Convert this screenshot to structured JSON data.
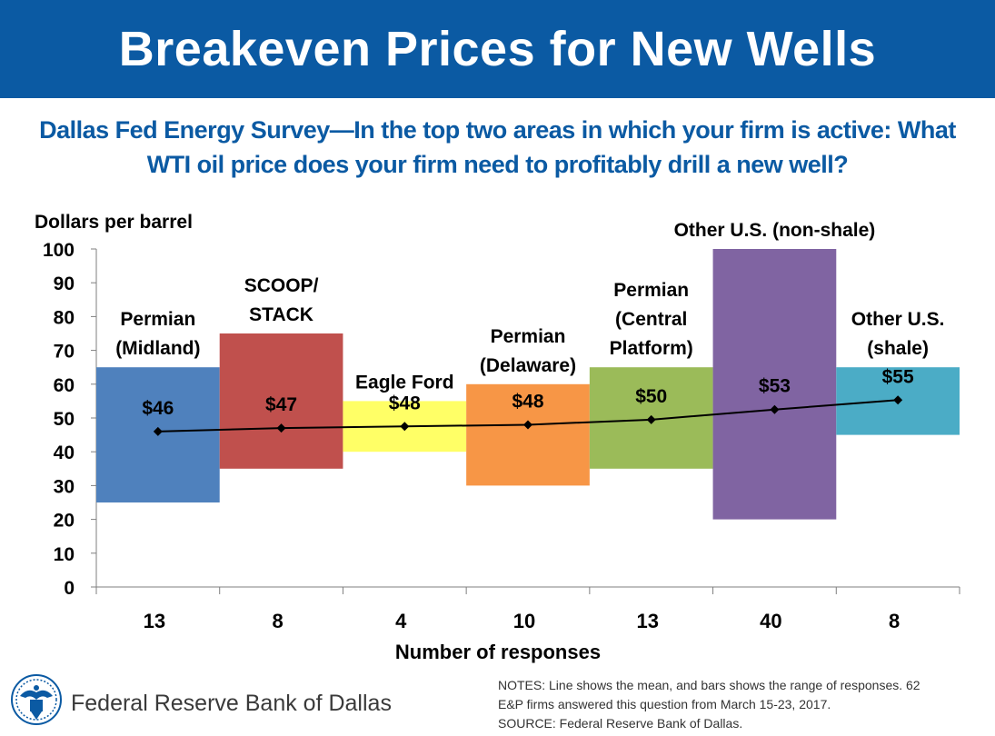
{
  "title": "Breakeven Prices for New Wells",
  "subtitle_line1": "Dallas Fed Energy Survey—In the top two areas in which your firm is active: What",
  "subtitle_line2": "WTI oil price does your firm need to profitably drill a new well?",
  "colors": {
    "title_bar": "#0b5aa3",
    "subtitle": "#0b5aa3",
    "mean_line": "#000000"
  },
  "chart_data": {
    "type": "bar",
    "description_type": "floating-range bars with mean line",
    "ylabel": "Dollars per barrel",
    "xlabel": "Number of responses",
    "ylim": [
      0,
      100
    ],
    "yticks": [
      0,
      10,
      20,
      30,
      40,
      50,
      60,
      70,
      80,
      90,
      100
    ],
    "grid": false,
    "bars": [
      {
        "region": [
          "Permian",
          "(Midland)"
        ],
        "responses": "13",
        "low": 25,
        "high": 65,
        "mean": 46,
        "mean_label": "$46",
        "color": "#4f81bd"
      },
      {
        "region": [
          "SCOOP/",
          "STACK"
        ],
        "responses": "8",
        "low": 35,
        "high": 75,
        "mean": 47,
        "mean_label": "$47",
        "color": "#c0504d"
      },
      {
        "region": [
          "Eagle Ford"
        ],
        "responses": "4",
        "low": 40,
        "high": 55,
        "mean": 47.5,
        "mean_label": "$48",
        "color": "#ffff66"
      },
      {
        "region": [
          "Permian",
          "(Delaware)"
        ],
        "responses": "10",
        "low": 30,
        "high": 60,
        "mean": 48,
        "mean_label": "$48",
        "color": "#f79646"
      },
      {
        "region": [
          "Permian",
          "(Central",
          "Platform)"
        ],
        "responses": "13",
        "low": 35,
        "high": 65,
        "mean": 49.5,
        "mean_label": "$50",
        "color": "#9bbb59"
      },
      {
        "region": [
          "Other U.S. (non-shale)"
        ],
        "responses": "40",
        "low": 20,
        "high": 100,
        "mean": 52.5,
        "mean_label": "$53",
        "color": "#8064a2"
      },
      {
        "region": [
          "Other U.S.",
          "(shale)"
        ],
        "responses": "8",
        "low": 45,
        "high": 65,
        "mean": 55.3,
        "mean_label": "$55",
        "color": "#4bacc6"
      }
    ]
  },
  "footer": {
    "bank_name": "Federal Reserve Bank of Dallas",
    "notes_line1": "NOTES: Line shows the mean, and bars shows the range of responses. 62",
    "notes_line2": "E&P firms answered this question from March 15-23, 2017.",
    "source": "SOURCE: Federal Reserve Bank of Dallas."
  }
}
